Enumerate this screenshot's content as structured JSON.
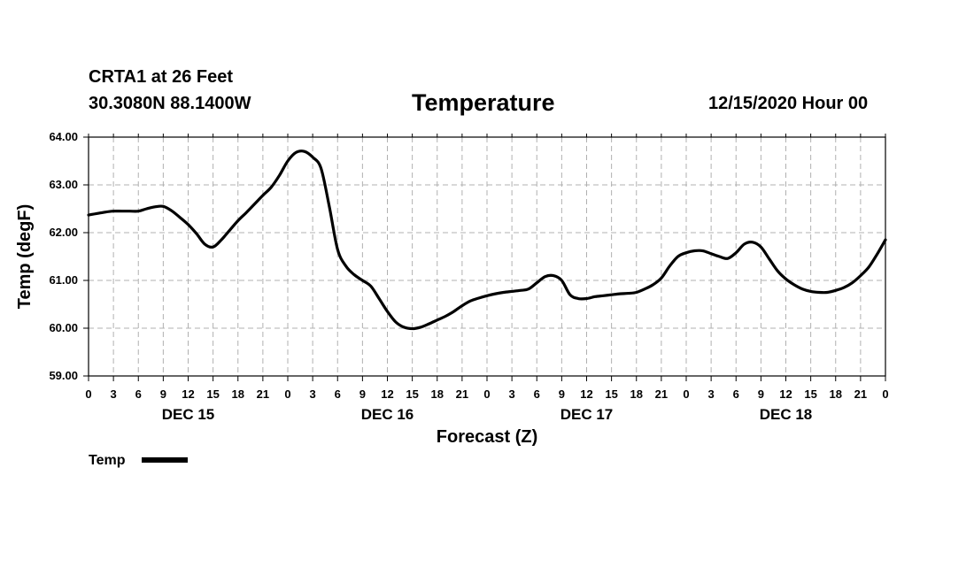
{
  "header": {
    "station": "CRTA1 at 26 Feet",
    "coordinates": "30.3080N 88.1400W",
    "run": "12/15/2020 Hour 00"
  },
  "chart_data": {
    "type": "line",
    "title": "Temperature",
    "xlabel": "Forecast (Z)",
    "ylabel": "Temp (degF)",
    "xlim": [
      0,
      96
    ],
    "ylim": [
      59,
      64
    ],
    "grid": true,
    "y_ticks": [
      "59.00",
      "60.00",
      "61.00",
      "62.00",
      "63.00",
      "64.00"
    ],
    "x_tick_hours": [
      0,
      3,
      6,
      9,
      12,
      15,
      18,
      21,
      24,
      27,
      30,
      33,
      36,
      39,
      42,
      45,
      48,
      51,
      54,
      57,
      60,
      63,
      66,
      69,
      72,
      75,
      78,
      81,
      84,
      87,
      90,
      93,
      96
    ],
    "x_tick_labels": [
      "0",
      "3",
      "6",
      "9",
      "12",
      "15",
      "18",
      "21",
      "0",
      "3",
      "6",
      "9",
      "12",
      "15",
      "18",
      "21",
      "0",
      "3",
      "6",
      "9",
      "12",
      "15",
      "18",
      "21",
      "0",
      "3",
      "6",
      "9",
      "12",
      "15",
      "18",
      "21",
      "0"
    ],
    "day_labels": [
      {
        "label": "DEC 15",
        "hour": 12
      },
      {
        "label": "DEC 16",
        "hour": 36
      },
      {
        "label": "DEC 17",
        "hour": 60
      },
      {
        "label": "DEC 18",
        "hour": 84
      }
    ],
    "legend": {
      "position": "bottom-left",
      "entries": [
        "Temp"
      ]
    },
    "series": [
      {
        "name": "Temp",
        "x": [
          0,
          2,
          3,
          4,
          5,
          6,
          7,
          8,
          9,
          10,
          11,
          12,
          13,
          14,
          15,
          16,
          17,
          18,
          19,
          20,
          21,
          22,
          23,
          24,
          25,
          26,
          27,
          28,
          29,
          30,
          31,
          32,
          33,
          34,
          35,
          36,
          37,
          38,
          39,
          40,
          41,
          42,
          43,
          44,
          45,
          46,
          47,
          48,
          49,
          50,
          51,
          52,
          53,
          54,
          55,
          56,
          57,
          58,
          59,
          60,
          61,
          62,
          63,
          64,
          65,
          66,
          67,
          68,
          69,
          70,
          71,
          72,
          73,
          74,
          75,
          76,
          77,
          78,
          79,
          80,
          81,
          82,
          83,
          84,
          85,
          86,
          87,
          88,
          89,
          90,
          91,
          92,
          93,
          94,
          95,
          96
        ],
        "values": [
          62.37,
          62.43,
          62.45,
          62.45,
          62.45,
          62.45,
          62.5,
          62.54,
          62.55,
          62.46,
          62.32,
          62.17,
          61.98,
          61.76,
          61.7,
          61.85,
          62.05,
          62.25,
          62.42,
          62.6,
          62.78,
          62.95,
          63.2,
          63.5,
          63.68,
          63.7,
          63.58,
          63.35,
          62.55,
          61.65,
          61.3,
          61.12,
          61.0,
          60.88,
          60.62,
          60.35,
          60.13,
          60.02,
          59.99,
          60.02,
          60.09,
          60.17,
          60.25,
          60.35,
          60.47,
          60.57,
          60.63,
          60.68,
          60.72,
          60.75,
          60.77,
          60.79,
          60.82,
          60.95,
          61.08,
          61.1,
          61.0,
          60.7,
          60.62,
          60.62,
          60.66,
          60.68,
          60.7,
          60.72,
          60.73,
          60.75,
          60.82,
          60.91,
          61.05,
          61.3,
          61.5,
          61.58,
          61.62,
          61.62,
          61.56,
          61.5,
          61.46,
          61.58,
          61.76,
          61.8,
          61.7,
          61.45,
          61.2,
          61.03,
          60.91,
          60.82,
          60.77,
          60.75,
          60.75,
          60.79,
          60.85,
          60.95,
          61.1,
          61.28,
          61.55,
          61.85
        ]
      }
    ]
  }
}
